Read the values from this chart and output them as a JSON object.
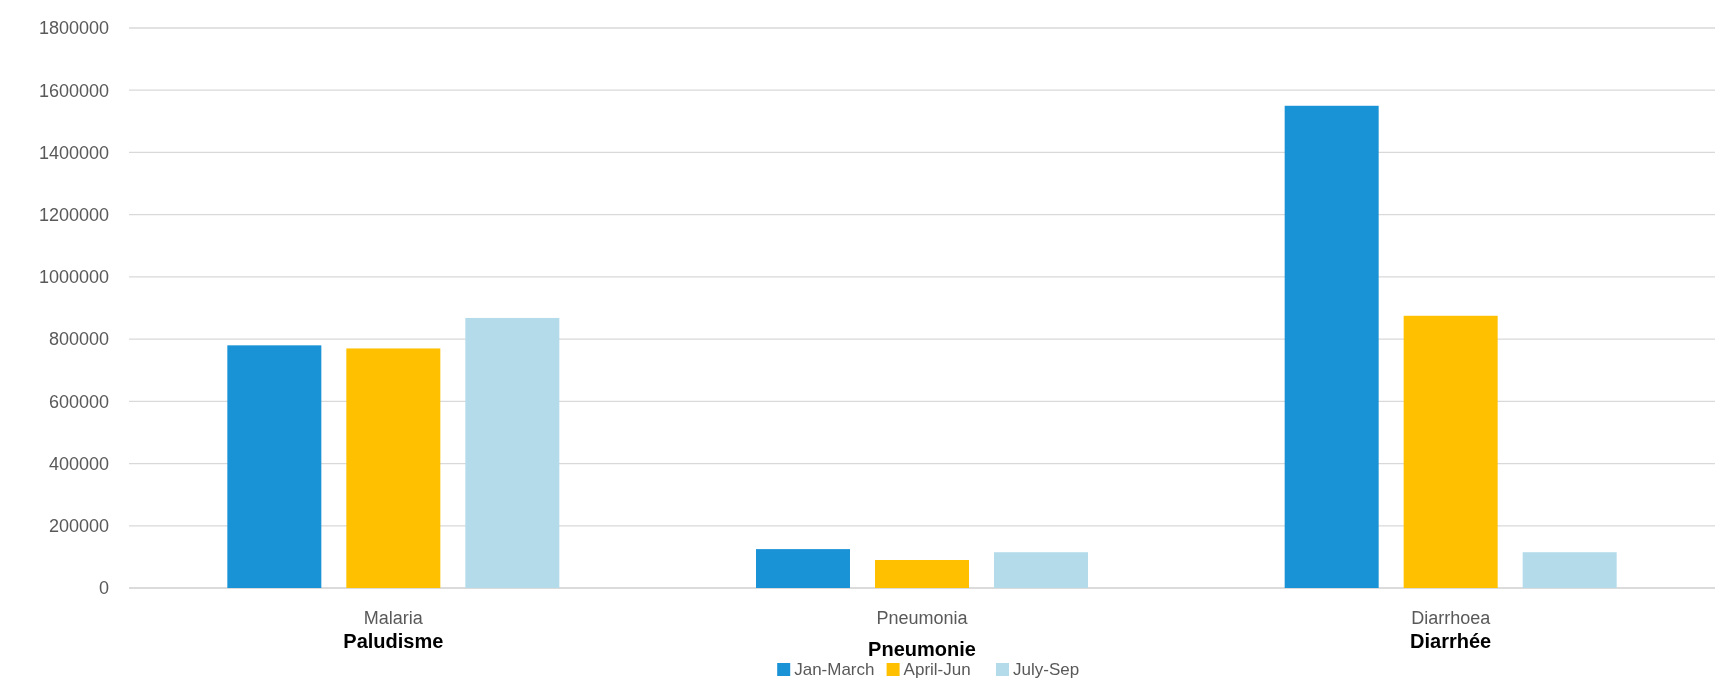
{
  "chart_data": {
    "type": "bar",
    "categories": [
      "Malaria",
      "Pneumonia",
      "Diarrhoea"
    ],
    "series": [
      {
        "name": "Jan-March",
        "color": "#1a92d6",
        "values": [
          780000,
          125000,
          1550000
        ]
      },
      {
        "name": "April-Jun",
        "color": "#ffc000",
        "values": [
          770000,
          90000,
          875000
        ]
      },
      {
        "name": "July-Sep",
        "color": "#b4dbea",
        "values": [
          868000,
          115000,
          115000
        ]
      }
    ],
    "ylim": [
      0,
      1800000
    ],
    "yticks": [
      0,
      200000,
      400000,
      600000,
      800000,
      1000000,
      1200000,
      1400000,
      1600000,
      1800000
    ],
    "grid": "y",
    "legend": "bottom",
    "annotations": [
      "Paludisme",
      "Pneumonie",
      "Diarrhée"
    ]
  }
}
